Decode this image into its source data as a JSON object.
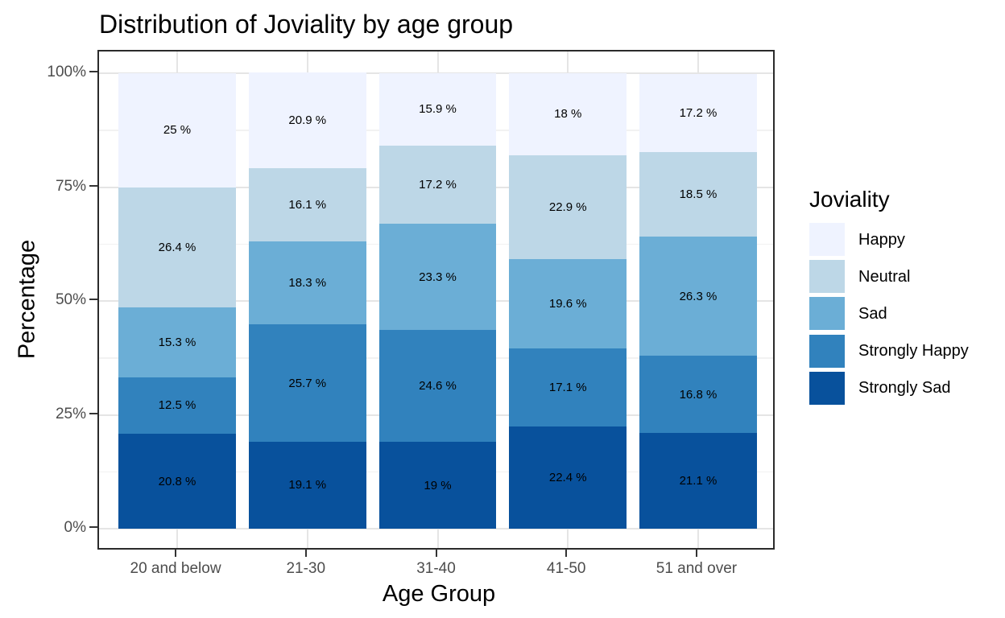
{
  "chart_data": {
    "type": "bar",
    "stacked": true,
    "title": "Distribution of Joviality by age group",
    "xlabel": "Age Group",
    "ylabel": "Percentage",
    "legend_title": "Joviality",
    "legend_position": "right",
    "grid": true,
    "ylim": [
      0,
      100
    ],
    "y_major_ticks": [
      0,
      25,
      50,
      75,
      100
    ],
    "y_minor_ticks": [
      12.5,
      37.5,
      62.5,
      87.5
    ],
    "y_tick_labels": [
      "0%",
      "25%",
      "50%",
      "75%",
      "100%"
    ],
    "categories": [
      "20 and below",
      "21-30",
      "31-40",
      "41-50",
      "51 and over"
    ],
    "series": [
      {
        "name": "Happy",
        "color": "#EFF3FF",
        "values": [
          25.0,
          20.9,
          15.9,
          18.0,
          17.2
        ],
        "labels": [
          "25 %",
          "20.9 %",
          "15.9 %",
          "18 %",
          "17.2 %"
        ]
      },
      {
        "name": "Neutral",
        "color": "#BDD7E7",
        "values": [
          26.4,
          16.1,
          17.2,
          22.9,
          18.5
        ],
        "labels": [
          "26.4 %",
          "16.1 %",
          "17.2 %",
          "22.9 %",
          "18.5 %"
        ]
      },
      {
        "name": "Sad",
        "color": "#6BAED6",
        "values": [
          15.3,
          18.3,
          23.3,
          19.6,
          26.3
        ],
        "labels": [
          "15.3 %",
          "18.3 %",
          "23.3 %",
          "19.6 %",
          "26.3 %"
        ]
      },
      {
        "name": "Strongly Happy",
        "color": "#3182BD",
        "values": [
          12.5,
          25.7,
          24.6,
          17.1,
          16.8
        ],
        "labels": [
          "12.5 %",
          "25.7 %",
          "24.6 %",
          "17.1 %",
          "16.8 %"
        ]
      },
      {
        "name": "Strongly Sad",
        "color": "#08519C",
        "values": [
          20.8,
          19.1,
          19.0,
          22.4,
          21.1
        ],
        "labels": [
          "20.8 %",
          "19.1 %",
          "19 %",
          "22.4 %",
          "21.1 %"
        ]
      }
    ],
    "colors": {
      "panel_border": "#2b2b2b",
      "grid_major": "#e5e5e5",
      "grid_minor": "#f2f2f2",
      "tick_text": "#4d4d4d",
      "label_text": "#000000"
    }
  }
}
